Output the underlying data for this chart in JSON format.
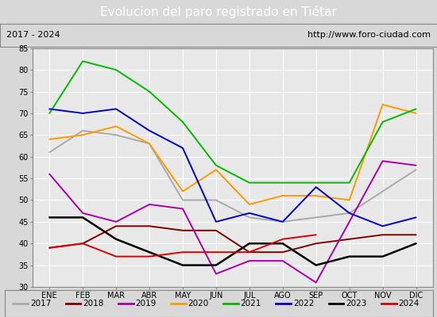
{
  "title": "Evolucion del paro registrado en Tiétar",
  "subtitle_left": "2017 - 2024",
  "subtitle_right": "http://www.foro-ciudad.com",
  "xlabel_months": [
    "ENE",
    "FEB",
    "MAR",
    "ABR",
    "MAY",
    "JUN",
    "JUL",
    "AGO",
    "SEP",
    "OCT",
    "NOV",
    "DIC"
  ],
  "ylim": [
    30,
    85
  ],
  "yticks": [
    30,
    35,
    40,
    45,
    50,
    55,
    60,
    65,
    70,
    75,
    80,
    85
  ],
  "series": {
    "2017": {
      "color": "#aaaaaa",
      "values": [
        61,
        66,
        65,
        63,
        50,
        50,
        46,
        45,
        46,
        47,
        52,
        57
      ]
    },
    "2018": {
      "color": "#800000",
      "values": [
        39,
        40,
        44,
        44,
        43,
        43,
        38,
        38,
        40,
        41,
        42,
        42
      ]
    },
    "2019": {
      "color": "#aa00aa",
      "values": [
        56,
        47,
        45,
        49,
        48,
        33,
        36,
        36,
        31,
        null,
        59,
        58
      ]
    },
    "2020": {
      "color": "#ff9900",
      "values": [
        64,
        65,
        67,
        63,
        52,
        57,
        49,
        51,
        51,
        50,
        72,
        70
      ]
    },
    "2021": {
      "color": "#00bb00",
      "values": [
        70,
        82,
        80,
        75,
        68,
        58,
        54,
        54,
        54,
        54,
        68,
        71
      ]
    },
    "2022": {
      "color": "#0000cc",
      "values": [
        71,
        70,
        71,
        66,
        62,
        45,
        47,
        45,
        53,
        47,
        44,
        46
      ]
    },
    "2023": {
      "color": "#000000",
      "values": [
        46,
        46,
        41,
        38,
        35,
        35,
        40,
        40,
        35,
        37,
        37,
        40
      ]
    },
    "2024": {
      "color": "#dd0000",
      "values": [
        39,
        40,
        37,
        37,
        38,
        38,
        38,
        41,
        42,
        null,
        null,
        null
      ]
    }
  },
  "title_bg_color": "#4477cc",
  "title_fg_color": "#ffffff",
  "plot_bg_color": "#e8e8e8",
  "chart_bg_color": "#d8d8d8",
  "grid_color": "#ffffff",
  "border_color": "#888888",
  "title_fontsize": 11,
  "subtitle_fontsize": 8,
  "legend_fontsize": 8,
  "tick_fontsize": 7
}
